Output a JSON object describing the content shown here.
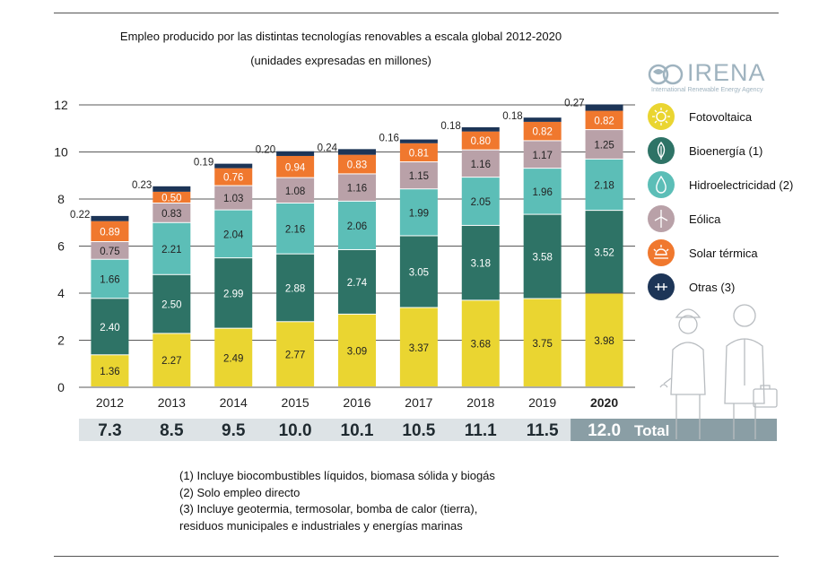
{
  "title_line1": "Empleo producido por las distintas tecnologías renovables a escala global 2012-2020",
  "title_line2": "(unidades expresadas en millones)",
  "logo": {
    "name": "IRENA",
    "subtitle": "International Renewable Energy Agency"
  },
  "legend": [
    {
      "label": "Fotovoltaica",
      "color": "#ead531",
      "icon": "sun-icon"
    },
    {
      "label": "Bioenergía  (1)",
      "color": "#2e7366",
      "icon": "leaf-icon"
    },
    {
      "label": "Hidroelectricidad (2)",
      "color": "#5cbeb7",
      "icon": "water-drop-icon"
    },
    {
      "label": "Eólica",
      "color": "#b9a1a8",
      "icon": "wind-turbine-icon"
    },
    {
      "label": "Solar térmica",
      "color": "#f0782e",
      "icon": "solar-thermal-icon"
    },
    {
      "label": "Otras (3)",
      "color": "#1d3557",
      "icon": "other-icon"
    }
  ],
  "chart_data": {
    "type": "bar",
    "stacked": true,
    "categories": [
      "2012",
      "2013",
      "2014",
      "2015",
      "2016",
      "2017",
      "2018",
      "2019",
      "2020"
    ],
    "highlight_category": "2020",
    "ylim": [
      0,
      12
    ],
    "yticks": [
      "0",
      "2",
      "4",
      "6",
      "8",
      "10",
      "12"
    ],
    "series": [
      {
        "name": "Fotovoltaica",
        "color": "#ead531",
        "values": [
          1.36,
          2.27,
          2.49,
          2.77,
          3.09,
          3.37,
          3.68,
          3.75,
          3.98
        ],
        "labels": [
          "1.36",
          "2.27",
          "2.49",
          "2.77",
          "3.09",
          "3.37",
          "3.68",
          "3.75",
          "3.98"
        ]
      },
      {
        "name": "Bioenergía  (1)",
        "color": "#2e7366",
        "values": [
          2.4,
          2.5,
          2.99,
          2.88,
          2.74,
          3.05,
          3.18,
          3.58,
          3.52
        ],
        "labels": [
          "2.40",
          "2.50",
          "2.99",
          "2.88",
          "2.74",
          "3.05",
          "3.18",
          "3.58",
          "3.52"
        ]
      },
      {
        "name": "Hidroelectricidad (2)",
        "color": "#5cbeb7",
        "values": [
          1.66,
          2.21,
          2.04,
          2.16,
          2.06,
          1.99,
          2.05,
          1.96,
          2.18
        ],
        "labels": [
          "1.66",
          "2.21",
          "2.04",
          "2.16",
          "2.06",
          "1.99",
          "2.05",
          "1.96",
          "2.18"
        ]
      },
      {
        "name": "Eólica",
        "color": "#b9a1a8",
        "values": [
          0.75,
          0.83,
          1.03,
          1.08,
          1.16,
          1.15,
          1.16,
          1.17,
          1.25
        ],
        "labels": [
          "0.75",
          "0.83",
          "1.03",
          "1.08",
          "1.16",
          "1.15",
          "1.16",
          "1.17",
          "1.25"
        ]
      },
      {
        "name": "Solar térmica",
        "color": "#f0782e",
        "values": [
          0.89,
          0.5,
          0.76,
          0.94,
          0.83,
          0.81,
          0.8,
          0.82,
          0.82
        ],
        "labels": [
          "0.89",
          "0.50",
          "0.76",
          "0.94",
          "0.83",
          "0.81",
          "0.80",
          "0.82",
          "0.82"
        ]
      },
      {
        "name": "Otras (3)",
        "color": "#1d3557",
        "values": [
          0.22,
          0.23,
          0.19,
          0.2,
          0.24,
          0.16,
          0.18,
          0.18,
          0.27
        ],
        "labels": [
          "0.22",
          "0.23",
          "0.19",
          "0.20",
          "0.24",
          "0.16",
          "0.18",
          "0.18",
          "0.27"
        ]
      }
    ],
    "totals": [
      "7.3",
      "8.5",
      "9.5",
      "10.0",
      "10.1",
      "10.5",
      "11.1",
      "11.5",
      "12.0"
    ],
    "totals_label": "Total"
  },
  "notes": [
    "(1) Incluye biocombustibles líquidos, biomasa sólida y biogás",
    "(2) Solo empleo directo",
    "(3) Incluye geotermia, termosolar, bomba de calor (tierra),",
    "residuos municipales e industriales y energías marinas"
  ]
}
